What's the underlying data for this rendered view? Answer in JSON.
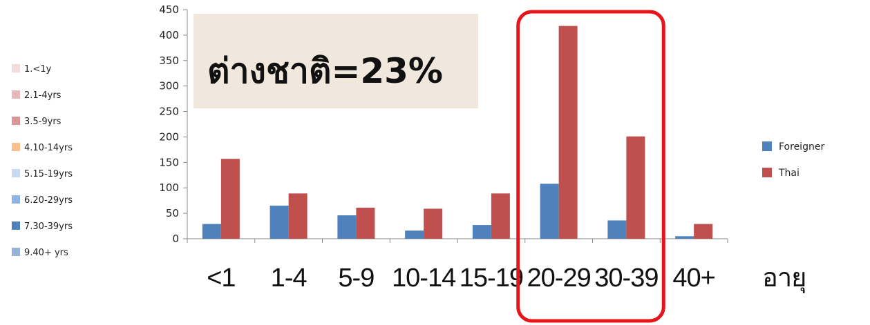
{
  "chart_data": {
    "type": "bar",
    "categories": [
      "<1",
      "1-4",
      "5-9",
      "10-14",
      "15-19",
      "20-29",
      "30-39",
      "40+"
    ],
    "series": [
      {
        "name": "Foreigner",
        "color": "#4F81BD",
        "values": [
          29,
          65,
          46,
          16,
          27,
          108,
          36,
          5
        ]
      },
      {
        "name": "Thai",
        "color": "#C0504D",
        "values": [
          157,
          89,
          61,
          59,
          89,
          418,
          201,
          29
        ]
      }
    ],
    "ylim": [
      0,
      450
    ],
    "yticks": [
      0,
      50,
      100,
      150,
      200,
      250,
      300,
      350,
      400,
      450
    ],
    "xlabel": "อายุ",
    "legend_position": "right",
    "highlight_categories": [
      "20-29",
      "30-39"
    ],
    "highlight_color": "#E8141B",
    "callout": {
      "text": "ต่างชาติ=23%",
      "background": "#F0E8DD"
    },
    "legacy_legend": [
      {
        "label": "1.<1y",
        "color": "#F2DCDB"
      },
      {
        "label": "2.1-4yrs",
        "color": "#E6B9B8"
      },
      {
        "label": "3.5-9yrs",
        "color": "#D99694"
      },
      {
        "label": "4.10-14yrs",
        "color": "#FAC090"
      },
      {
        "label": "5.15-19yrs",
        "color": "#C6D9F1"
      },
      {
        "label": "6.20-29yrs",
        "color": "#8EB4E3"
      },
      {
        "label": "7.30-39yrs",
        "color": "#4F81BD"
      },
      {
        "label": "9.40+ yrs",
        "color": "#95B3D7"
      }
    ]
  }
}
